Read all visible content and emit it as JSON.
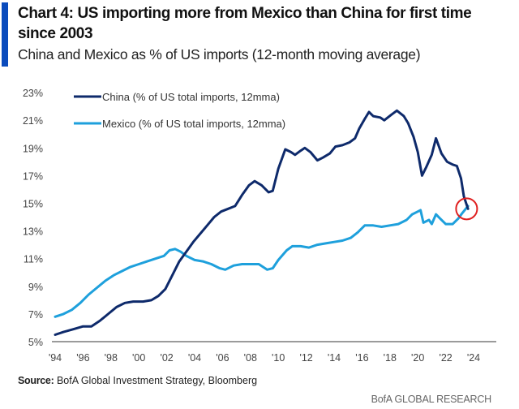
{
  "header": {
    "title": "Chart 4: US importing more from Mexico than China for first time since 2003",
    "subtitle": "China and Mexico as % of US imports (12-month moving average)"
  },
  "footer": {
    "source_label": "Source:",
    "source_text": "BofA Global Investment Strategy, Bloomberg",
    "brand": "BofA GLOBAL RESEARCH"
  },
  "colors": {
    "accent": "#0a4bbd",
    "china": "#0e2a6b",
    "mexico": "#1ea0dc",
    "highlight": "#e02020",
    "axis": "#7a7a7a"
  },
  "chart_data": {
    "type": "line",
    "title": "China and Mexico as % of US imports (12-month moving average)",
    "xlabel": "",
    "ylabel": "",
    "xlim": [
      1994,
      2025.8
    ],
    "ylim": [
      5,
      23
    ],
    "x_ticks": [
      1994,
      1996,
      1998,
      2000,
      2002,
      2004,
      2006,
      2008,
      2010,
      2012,
      2014,
      2016,
      2018,
      2020,
      2022,
      2024
    ],
    "x_tick_labels": [
      "'94",
      "'96",
      "'98",
      "'00",
      "'02",
      "'04",
      "'06",
      "'08",
      "'10",
      "'12",
      "'14",
      "'16",
      "'18",
      "'20",
      "'22",
      "'24"
    ],
    "y_ticks": [
      5,
      7,
      9,
      11,
      13,
      15,
      17,
      19,
      21,
      23
    ],
    "y_tick_labels": [
      "5%",
      "7%",
      "9%",
      "11%",
      "13%",
      "15%",
      "17%",
      "19%",
      "21%",
      "23%"
    ],
    "grid": false,
    "legend_position": "top-left",
    "annotation": "red circle marking crossover in 2023",
    "annotation_point": {
      "x": 2023.5,
      "y": 14.6
    },
    "series": [
      {
        "name": "China (% of US total imports, 12mma)",
        "color": "#0e2a6b",
        "points": [
          [
            1994.0,
            5.5
          ],
          [
            1994.6,
            5.7
          ],
          [
            1995.3,
            5.9
          ],
          [
            1996.0,
            6.1
          ],
          [
            1996.6,
            6.1
          ],
          [
            1997.2,
            6.5
          ],
          [
            1997.8,
            7.0
          ],
          [
            1998.4,
            7.5
          ],
          [
            1999.0,
            7.8
          ],
          [
            1999.6,
            7.9
          ],
          [
            2000.3,
            7.9
          ],
          [
            2000.9,
            8.0
          ],
          [
            2001.4,
            8.3
          ],
          [
            2001.9,
            8.8
          ],
          [
            2002.4,
            9.8
          ],
          [
            2002.9,
            10.8
          ],
          [
            2003.4,
            11.5
          ],
          [
            2003.9,
            12.2
          ],
          [
            2004.4,
            12.8
          ],
          [
            2004.9,
            13.4
          ],
          [
            2005.4,
            14.0
          ],
          [
            2005.9,
            14.4
          ],
          [
            2006.4,
            14.6
          ],
          [
            2006.9,
            14.8
          ],
          [
            2007.4,
            15.6
          ],
          [
            2007.9,
            16.3
          ],
          [
            2008.3,
            16.6
          ],
          [
            2008.8,
            16.3
          ],
          [
            2009.3,
            15.8
          ],
          [
            2009.6,
            15.9
          ],
          [
            2010.0,
            17.5
          ],
          [
            2010.5,
            18.9
          ],
          [
            2010.9,
            18.7
          ],
          [
            2011.2,
            18.5
          ],
          [
            2011.6,
            18.8
          ],
          [
            2011.9,
            19.0
          ],
          [
            2012.3,
            18.7
          ],
          [
            2012.8,
            18.1
          ],
          [
            2013.2,
            18.3
          ],
          [
            2013.7,
            18.6
          ],
          [
            2014.1,
            19.1
          ],
          [
            2014.6,
            19.2
          ],
          [
            2015.1,
            19.4
          ],
          [
            2015.5,
            19.7
          ],
          [
            2015.8,
            20.4
          ],
          [
            2016.2,
            21.1
          ],
          [
            2016.5,
            21.6
          ],
          [
            2016.8,
            21.3
          ],
          [
            2017.3,
            21.2
          ],
          [
            2017.6,
            21.0
          ],
          [
            2018.1,
            21.4
          ],
          [
            2018.5,
            21.7
          ],
          [
            2019.0,
            21.3
          ],
          [
            2019.3,
            20.8
          ],
          [
            2019.7,
            19.8
          ],
          [
            2020.0,
            18.7
          ],
          [
            2020.3,
            17.0
          ],
          [
            2020.6,
            17.6
          ],
          [
            2021.0,
            18.5
          ],
          [
            2021.3,
            19.7
          ],
          [
            2021.7,
            18.6
          ],
          [
            2022.1,
            18.0
          ],
          [
            2022.5,
            17.8
          ],
          [
            2022.8,
            17.7
          ],
          [
            2023.1,
            16.8
          ],
          [
            2023.3,
            15.5
          ],
          [
            2023.6,
            14.6
          ]
        ]
      },
      {
        "name": "Mexico (% of US total imports, 12mma)",
        "color": "#1ea0dc",
        "points": [
          [
            1994.0,
            6.8
          ],
          [
            1994.6,
            7.0
          ],
          [
            1995.2,
            7.3
          ],
          [
            1995.8,
            7.8
          ],
          [
            1996.4,
            8.4
          ],
          [
            1997.0,
            8.9
          ],
          [
            1997.6,
            9.4
          ],
          [
            1998.2,
            9.8
          ],
          [
            1998.8,
            10.1
          ],
          [
            1999.4,
            10.4
          ],
          [
            2000.0,
            10.6
          ],
          [
            2000.6,
            10.8
          ],
          [
            2001.2,
            11.0
          ],
          [
            2001.8,
            11.2
          ],
          [
            2002.2,
            11.6
          ],
          [
            2002.6,
            11.7
          ],
          [
            2003.0,
            11.5
          ],
          [
            2003.4,
            11.2
          ],
          [
            2004.0,
            10.9
          ],
          [
            2004.6,
            10.8
          ],
          [
            2005.2,
            10.6
          ],
          [
            2005.8,
            10.3
          ],
          [
            2006.2,
            10.2
          ],
          [
            2006.8,
            10.5
          ],
          [
            2007.4,
            10.6
          ],
          [
            2008.0,
            10.6
          ],
          [
            2008.6,
            10.6
          ],
          [
            2009.2,
            10.2
          ],
          [
            2009.6,
            10.3
          ],
          [
            2010.0,
            10.9
          ],
          [
            2010.6,
            11.6
          ],
          [
            2011.0,
            11.9
          ],
          [
            2011.6,
            11.9
          ],
          [
            2012.2,
            11.8
          ],
          [
            2012.8,
            12.0
          ],
          [
            2013.4,
            12.1
          ],
          [
            2014.0,
            12.2
          ],
          [
            2014.6,
            12.3
          ],
          [
            2015.2,
            12.5
          ],
          [
            2015.7,
            12.9
          ],
          [
            2016.2,
            13.4
          ],
          [
            2016.8,
            13.4
          ],
          [
            2017.4,
            13.3
          ],
          [
            2018.0,
            13.4
          ],
          [
            2018.6,
            13.5
          ],
          [
            2019.2,
            13.8
          ],
          [
            2019.6,
            14.2
          ],
          [
            2020.0,
            14.4
          ],
          [
            2020.2,
            14.5
          ],
          [
            2020.4,
            13.6
          ],
          [
            2020.8,
            13.8
          ],
          [
            2021.0,
            13.5
          ],
          [
            2021.3,
            14.2
          ],
          [
            2021.6,
            13.9
          ],
          [
            2022.0,
            13.5
          ],
          [
            2022.5,
            13.5
          ],
          [
            2022.9,
            13.9
          ],
          [
            2023.2,
            14.3
          ],
          [
            2023.6,
            14.8
          ]
        ]
      }
    ]
  }
}
